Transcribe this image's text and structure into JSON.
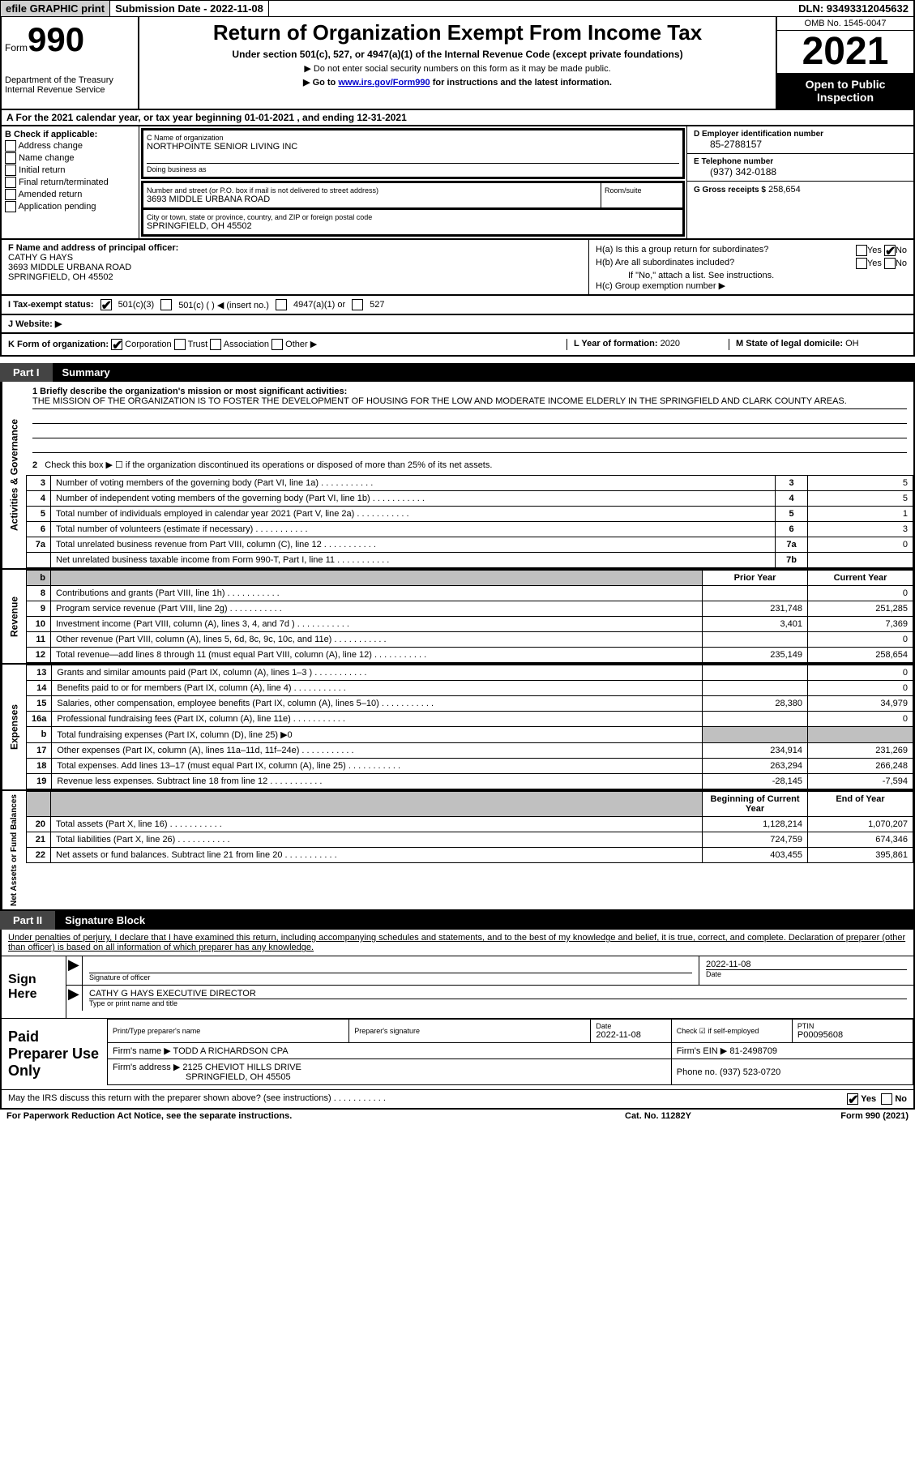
{
  "topbar": {
    "efile": "efile GRAPHIC print",
    "submission": "Submission Date - 2022-11-08",
    "dln": "DLN: 93493312045632"
  },
  "header": {
    "form_prefix": "Form",
    "form_number": "990",
    "dept": "Department of the Treasury Internal Revenue Service",
    "title": "Return of Organization Exempt From Income Tax",
    "subtitle": "Under section 501(c), 527, or 4947(a)(1) of the Internal Revenue Code (except private foundations)",
    "note1": "▶ Do not enter social security numbers on this form as it may be made public.",
    "note2_pre": "▶ Go to ",
    "note2_link": "www.irs.gov/Form990",
    "note2_post": " for instructions and the latest information.",
    "omb": "OMB No. 1545-0047",
    "year": "2021",
    "public": "Open to Public Inspection"
  },
  "lineA": "A For the 2021 calendar year, or tax year beginning 01-01-2021    , and ending 12-31-2021",
  "sectionB": {
    "label": "B Check if applicable:",
    "options": [
      "Address change",
      "Name change",
      "Initial return",
      "Final return/terminated",
      "Amended return",
      "Application pending"
    ]
  },
  "sectionC": {
    "name_label": "C Name of organization",
    "name": "NORTHPOINTE SENIOR LIVING INC",
    "dba_label": "Doing business as",
    "dba": "",
    "street_label": "Number and street (or P.O. box if mail is not delivered to street address)",
    "room_label": "Room/suite",
    "street": "3693 MIDDLE URBANA ROAD",
    "city_label": "City or town, state or province, country, and ZIP or foreign postal code",
    "city": "SPRINGFIELD, OH  45502"
  },
  "sectionD": {
    "ein_label": "D Employer identification number",
    "ein": "85-2788157",
    "phone_label": "E Telephone number",
    "phone": "(937) 342-0188",
    "gross_label": "G Gross receipts $",
    "gross": "258,654"
  },
  "sectionF": {
    "label": "F  Name and address of principal officer:",
    "name": "CATHY G HAYS",
    "addr1": "3693 MIDDLE URBANA ROAD",
    "addr2": "SPRINGFIELD, OH  45502"
  },
  "sectionH": {
    "ha_label": "H(a)  Is this a group return for subordinates?",
    "hb_label": "H(b)  Are all subordinates included?",
    "hb_note": "If \"No,\" attach a list. See instructions.",
    "hc_label": "H(c)  Group exemption number ▶"
  },
  "lineI": {
    "label": "I   Tax-exempt status:",
    "opts": [
      "501(c)(3)",
      "501(c) (  ) ◀ (insert no.)",
      "4947(a)(1) or",
      "527"
    ]
  },
  "lineJ": {
    "label": "J   Website: ▶"
  },
  "lineK": {
    "label": "K Form of organization:",
    "opts": [
      "Corporation",
      "Trust",
      "Association",
      "Other ▶"
    ]
  },
  "lineL": {
    "label": "L Year of formation:",
    "val": "2020"
  },
  "lineM": {
    "label": "M State of legal domicile:",
    "val": "OH"
  },
  "part1": {
    "tab": "Part I",
    "title": "Summary"
  },
  "mission": {
    "label": "1   Briefly describe the organization's mission or most significant activities:",
    "text": "THE MISSION OF THE ORGANIZATION IS TO FOSTER THE DEVELOPMENT OF HOUSING FOR THE LOW AND MODERATE INCOME ELDERLY IN THE SPRINGFIELD AND CLARK COUNTY AREAS."
  },
  "governance": {
    "label": "Activities & Governance",
    "line2": "Check this box ▶ ☐  if the organization discontinued its operations or disposed of more than 25% of its net assets.",
    "rows": [
      {
        "n": "3",
        "d": "Number of voting members of the governing body (Part VI, line 1a)",
        "box": "3",
        "v": "5"
      },
      {
        "n": "4",
        "d": "Number of independent voting members of the governing body (Part VI, line 1b)",
        "box": "4",
        "v": "5"
      },
      {
        "n": "5",
        "d": "Total number of individuals employed in calendar year 2021 (Part V, line 2a)",
        "box": "5",
        "v": "1"
      },
      {
        "n": "6",
        "d": "Total number of volunteers (estimate if necessary)",
        "box": "6",
        "v": "3"
      },
      {
        "n": "7a",
        "d": "Total unrelated business revenue from Part VIII, column (C), line 12",
        "box": "7a",
        "v": "0"
      },
      {
        "n": "",
        "d": "Net unrelated business taxable income from Form 990-T, Part I, line 11",
        "box": "7b",
        "v": ""
      }
    ]
  },
  "revenue": {
    "label": "Revenue",
    "col_prior": "Prior Year",
    "col_current": "Current Year",
    "rows": [
      {
        "n": "8",
        "d": "Contributions and grants (Part VIII, line 1h)",
        "p": "",
        "c": "0"
      },
      {
        "n": "9",
        "d": "Program service revenue (Part VIII, line 2g)",
        "p": "231,748",
        "c": "251,285"
      },
      {
        "n": "10",
        "d": "Investment income (Part VIII, column (A), lines 3, 4, and 7d )",
        "p": "3,401",
        "c": "7,369"
      },
      {
        "n": "11",
        "d": "Other revenue (Part VIII, column (A), lines 5, 6d, 8c, 9c, 10c, and 11e)",
        "p": "",
        "c": "0"
      },
      {
        "n": "12",
        "d": "Total revenue—add lines 8 through 11 (must equal Part VIII, column (A), line 12)",
        "p": "235,149",
        "c": "258,654"
      }
    ]
  },
  "expenses": {
    "label": "Expenses",
    "rows": [
      {
        "n": "13",
        "d": "Grants and similar amounts paid (Part IX, column (A), lines 1–3 )",
        "p": "",
        "c": "0"
      },
      {
        "n": "14",
        "d": "Benefits paid to or for members (Part IX, column (A), line 4)",
        "p": "",
        "c": "0"
      },
      {
        "n": "15",
        "d": "Salaries, other compensation, employee benefits (Part IX, column (A), lines 5–10)",
        "p": "28,380",
        "c": "34,979"
      },
      {
        "n": "16a",
        "d": "Professional fundraising fees (Part IX, column (A), line 11e)",
        "p": "",
        "c": "0"
      },
      {
        "n": "b",
        "d": "Total fundraising expenses (Part IX, column (D), line 25) ▶0",
        "p": "",
        "c": "",
        "shade": true
      },
      {
        "n": "17",
        "d": "Other expenses (Part IX, column (A), lines 11a–11d, 11f–24e)",
        "p": "234,914",
        "c": "231,269"
      },
      {
        "n": "18",
        "d": "Total expenses. Add lines 13–17 (must equal Part IX, column (A), line 25)",
        "p": "263,294",
        "c": "266,248"
      },
      {
        "n": "19",
        "d": "Revenue less expenses. Subtract line 18 from line 12",
        "p": "-28,145",
        "c": "-7,594"
      }
    ]
  },
  "netassets": {
    "label": "Net Assets or Fund Balances",
    "col_begin": "Beginning of Current Year",
    "col_end": "End of Year",
    "rows": [
      {
        "n": "20",
        "d": "Total assets (Part X, line 16)",
        "p": "1,128,214",
        "c": "1,070,207"
      },
      {
        "n": "21",
        "d": "Total liabilities (Part X, line 26)",
        "p": "724,759",
        "c": "674,346"
      },
      {
        "n": "22",
        "d": "Net assets or fund balances. Subtract line 21 from line 20",
        "p": "403,455",
        "c": "395,861"
      }
    ]
  },
  "part2": {
    "tab": "Part II",
    "title": "Signature Block",
    "declaration": "Under penalties of perjury, I declare that I have examined this return, including accompanying schedules and statements, and to the best of my knowledge and belief, it is true, correct, and complete. Declaration of preparer (other than officer) is based on all information of which preparer has any knowledge."
  },
  "sign": {
    "label": "Sign Here",
    "sig_label": "Signature of officer",
    "date": "2022-11-08",
    "date_label": "Date",
    "name": "CATHY G HAYS  EXECUTIVE DIRECTOR",
    "name_label": "Type or print name and title"
  },
  "paid": {
    "label": "Paid Preparer Use Only",
    "print_label": "Print/Type preparer's name",
    "print_val": "",
    "sig_label": "Preparer's signature",
    "date_label": "Date",
    "date": "2022-11-08",
    "check_label": "Check ☑ if self-employed",
    "ptin_label": "PTIN",
    "ptin": "P00095608",
    "firm_name_label": "Firm's name     ▶",
    "firm_name": "TODD A RICHARDSON CPA",
    "firm_ein_label": "Firm's EIN ▶",
    "firm_ein": "81-2498709",
    "firm_addr_label": "Firm's address ▶",
    "firm_addr1": "2125 CHEVIOT HILLS DRIVE",
    "firm_addr2": "SPRINGFIELD, OH  45505",
    "phone_label": "Phone no.",
    "phone": "(937) 523-0720"
  },
  "discuss": {
    "text": "May the IRS discuss this return with the preparer shown above? (see instructions)",
    "yes": "Yes",
    "no": "No"
  },
  "footer": {
    "paperwork": "For Paperwork Reduction Act Notice, see the separate instructions.",
    "cat": "Cat. No. 11282Y",
    "form": "Form 990 (2021)"
  }
}
